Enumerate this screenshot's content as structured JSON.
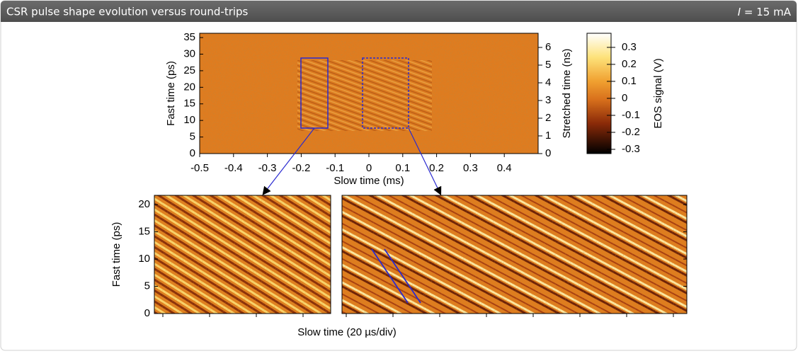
{
  "header": {
    "title": "CSR pulse shape evolution versus round-trips",
    "current_symbol": "I",
    "current_value": "= 15 mA"
  },
  "figure": {
    "overview": {
      "xlabel": "Slow time (ms)",
      "xlim": [
        -0.5,
        0.5
      ],
      "xticks": [
        -0.5,
        -0.4,
        -0.3,
        -0.2,
        -0.1,
        0,
        0.1,
        0.2,
        0.3,
        0.4
      ],
      "ylabel": "Fast time (ps)",
      "ylim": [
        0,
        36.3
      ],
      "yticks": [
        0,
        5,
        10,
        15,
        20,
        25,
        30,
        35
      ],
      "y2label": "Stretched time (ns)",
      "y2lim": [
        0,
        6.8
      ],
      "y2ticks": [
        0,
        1,
        2,
        3,
        4,
        5,
        6
      ]
    },
    "colorbar": {
      "label": "EOS signal (V)",
      "lim": [
        -0.325,
        0.383
      ],
      "ticks": [
        -0.3,
        -0.2,
        -0.1,
        0,
        0.1,
        0.2,
        0.3
      ]
    },
    "zoom": {
      "ylabel": "Fast time (ps)",
      "ylim": [
        0,
        21.7
      ],
      "yticks": [
        0,
        5,
        10,
        15,
        20
      ],
      "xlabel": "Slow time (20 µs/div)"
    }
  }
}
